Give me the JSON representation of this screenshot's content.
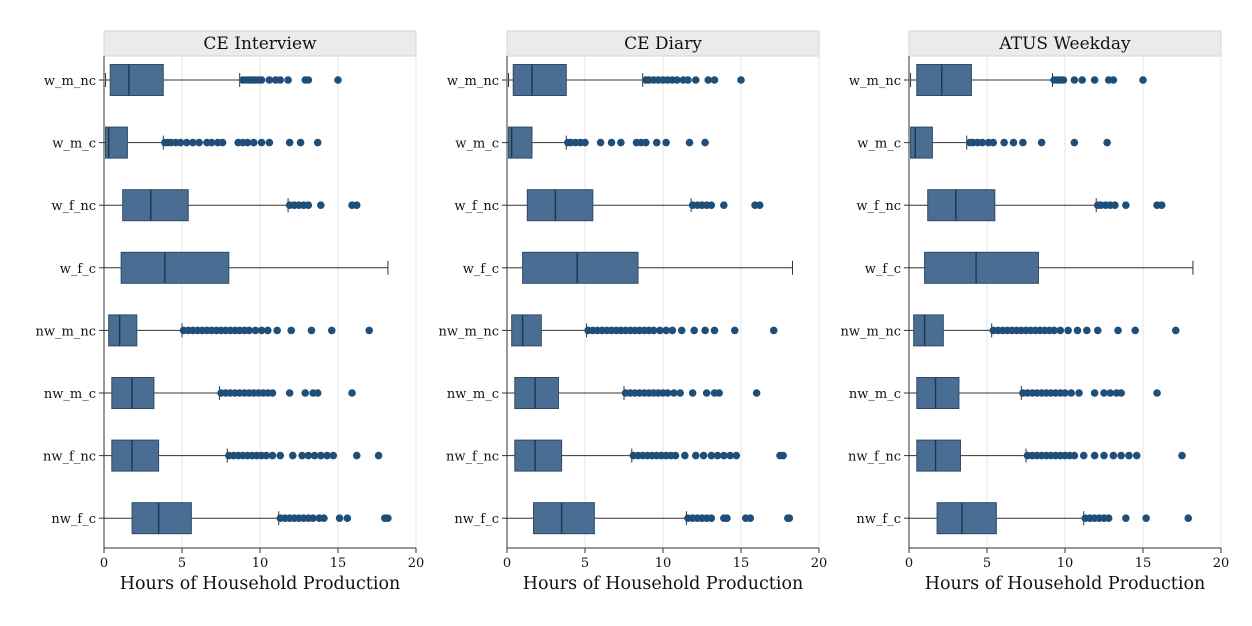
{
  "chart_data": {
    "type": "boxplot",
    "xlabel": "Hours of Household Production",
    "xlim": [
      0,
      20
    ],
    "xticks": [
      0,
      5,
      10,
      15,
      20
    ],
    "grid": true,
    "colors": {
      "box": "#4a6e93",
      "box_edge": "#2e4a66",
      "outlier": "#1f4e79",
      "title_bg": "#ebebeb",
      "grid": "#e6e6e6",
      "line": "#333333"
    },
    "categories": [
      "w_m_nc",
      "w_m_c",
      "w_f_nc",
      "w_f_c",
      "nw_m_nc",
      "nw_m_c",
      "nw_f_nc",
      "nw_f_c"
    ],
    "panels": [
      {
        "title": "CE Interview",
        "boxes": [
          {
            "min": 0.1,
            "q1": 0.4,
            "median": 1.6,
            "q3": 3.8,
            "max": 8.7,
            "outliers": [
              8.9,
              9.1,
              9.3,
              9.5,
              9.7,
              9.9,
              10.1,
              10.6,
              11.0,
              11.3,
              11.8,
              12.9,
              13.1,
              15.0
            ]
          },
          {
            "min": 0.0,
            "q1": 0.1,
            "median": 0.3,
            "q3": 1.5,
            "max": 3.8,
            "outliers": [
              3.9,
              4.1,
              4.3,
              4.6,
              4.9,
              5.3,
              5.7,
              6.1,
              6.6,
              6.9,
              7.3,
              7.6,
              8.6,
              8.9,
              9.2,
              9.6,
              10.1,
              10.6,
              11.9,
              12.6,
              13.7
            ]
          },
          {
            "min": 0.0,
            "q1": 1.2,
            "median": 3.0,
            "q3": 5.4,
            "max": 11.8,
            "outliers": [
              11.9,
              12.2,
              12.5,
              12.8,
              13.1,
              13.9,
              15.9,
              16.2
            ]
          },
          {
            "min": 0.0,
            "q1": 1.1,
            "median": 3.9,
            "q3": 8.0,
            "max": 18.2,
            "outliers": []
          },
          {
            "min": 0.0,
            "q1": 0.3,
            "median": 1.0,
            "q3": 2.1,
            "max": 5.0,
            "outliers": [
              5.1,
              5.4,
              5.7,
              6.0,
              6.3,
              6.6,
              6.9,
              7.2,
              7.5,
              7.8,
              8.1,
              8.4,
              8.7,
              9.0,
              9.3,
              9.7,
              10.1,
              10.5,
              11.1,
              12.0,
              13.3,
              14.6,
              17.0
            ]
          },
          {
            "min": 0.0,
            "q1": 0.5,
            "median": 1.8,
            "q3": 3.2,
            "max": 7.4,
            "outliers": [
              7.5,
              7.8,
              8.1,
              8.4,
              8.7,
              9.0,
              9.3,
              9.6,
              9.9,
              10.2,
              10.5,
              10.8,
              11.9,
              12.9,
              13.4,
              13.7,
              15.9
            ]
          },
          {
            "min": 0.0,
            "q1": 0.5,
            "median": 1.8,
            "q3": 3.5,
            "max": 7.9,
            "outliers": [
              8.0,
              8.3,
              8.6,
              8.9,
              9.2,
              9.5,
              9.8,
              10.1,
              10.4,
              10.8,
              11.3,
              12.1,
              12.7,
              13.1,
              13.5,
              13.9,
              14.3,
              14.7,
              16.2,
              17.6
            ]
          },
          {
            "min": 0.0,
            "q1": 1.8,
            "median": 3.5,
            "q3": 5.6,
            "max": 11.2,
            "outliers": [
              11.3,
              11.6,
              11.9,
              12.2,
              12.5,
              12.8,
              13.1,
              13.4,
              13.8,
              14.1,
              15.1,
              15.6,
              18.0,
              18.2
            ]
          }
        ]
      },
      {
        "title": "CE Diary",
        "boxes": [
          {
            "min": 0.1,
            "q1": 0.4,
            "median": 1.6,
            "q3": 3.8,
            "max": 8.7,
            "outliers": [
              8.9,
              9.1,
              9.4,
              9.7,
              10.0,
              10.3,
              10.6,
              10.9,
              11.3,
              11.6,
              12.1,
              12.9,
              13.3,
              15.0
            ]
          },
          {
            "min": 0.0,
            "q1": 0.1,
            "median": 0.3,
            "q3": 1.6,
            "max": 3.8,
            "outliers": [
              3.9,
              4.1,
              4.4,
              4.7,
              5.0,
              6.0,
              6.7,
              7.3,
              8.3,
              8.6,
              8.9,
              9.6,
              10.2,
              11.7,
              12.7
            ]
          },
          {
            "min": 0.0,
            "q1": 1.3,
            "median": 3.1,
            "q3": 5.5,
            "max": 11.8,
            "outliers": [
              11.9,
              12.2,
              12.5,
              12.8,
              13.1,
              13.9,
              15.9,
              16.2
            ]
          },
          {
            "min": 0.0,
            "q1": 1.0,
            "median": 4.5,
            "q3": 8.4,
            "max": 18.3,
            "outliers": []
          },
          {
            "min": 0.0,
            "q1": 0.3,
            "median": 1.0,
            "q3": 2.2,
            "max": 5.1,
            "outliers": [
              5.2,
              5.5,
              5.8,
              6.1,
              6.4,
              6.7,
              7.0,
              7.3,
              7.6,
              7.9,
              8.2,
              8.5,
              8.8,
              9.1,
              9.4,
              9.8,
              10.2,
              10.6,
              11.2,
              12.0,
              12.7,
              13.3,
              14.6,
              17.1
            ]
          },
          {
            "min": 0.0,
            "q1": 0.5,
            "median": 1.8,
            "q3": 3.3,
            "max": 7.5,
            "outliers": [
              7.6,
              7.9,
              8.2,
              8.5,
              8.8,
              9.1,
              9.4,
              9.7,
              10.0,
              10.3,
              10.7,
              11.1,
              11.9,
              12.8,
              13.3,
              13.6,
              16.0
            ]
          },
          {
            "min": 0.0,
            "q1": 0.5,
            "median": 1.8,
            "q3": 3.5,
            "max": 8.0,
            "outliers": [
              8.1,
              8.4,
              8.7,
              9.0,
              9.3,
              9.6,
              9.9,
              10.2,
              10.5,
              10.8,
              11.4,
              12.1,
              12.6,
              13.1,
              13.5,
              13.9,
              14.3,
              14.7,
              17.5,
              17.7
            ]
          },
          {
            "min": 0.0,
            "q1": 1.7,
            "median": 3.5,
            "q3": 5.6,
            "max": 11.5,
            "outliers": [
              11.6,
              11.9,
              12.2,
              12.5,
              12.8,
              13.1,
              13.9,
              14.1,
              15.3,
              15.6,
              18.0,
              18.1
            ]
          }
        ]
      },
      {
        "title": "ATUS Weekday",
        "boxes": [
          {
            "min": 0.1,
            "q1": 0.5,
            "median": 2.1,
            "q3": 4.0,
            "max": 9.2,
            "outliers": [
              9.3,
              9.5,
              9.7,
              9.9,
              10.6,
              11.1,
              11.9,
              12.8,
              13.1,
              15.0
            ]
          },
          {
            "min": 0.0,
            "q1": 0.1,
            "median": 0.4,
            "q3": 1.5,
            "max": 3.7,
            "outliers": [
              3.9,
              4.1,
              4.4,
              4.7,
              5.1,
              5.4,
              6.1,
              6.7,
              7.3,
              8.5,
              10.6,
              12.7
            ]
          },
          {
            "min": 0.0,
            "q1": 1.2,
            "median": 3.0,
            "q3": 5.5,
            "max": 12.0,
            "outliers": [
              12.1,
              12.3,
              12.6,
              12.9,
              13.2,
              13.9,
              15.9,
              16.2
            ]
          },
          {
            "min": 0.0,
            "q1": 1.0,
            "median": 4.3,
            "q3": 8.3,
            "max": 18.2,
            "outliers": []
          },
          {
            "min": 0.0,
            "q1": 0.3,
            "median": 1.0,
            "q3": 2.2,
            "max": 5.3,
            "outliers": [
              5.4,
              5.7,
              6.0,
              6.3,
              6.6,
              6.9,
              7.2,
              7.5,
              7.8,
              8.1,
              8.4,
              8.7,
              9.0,
              9.3,
              9.7,
              10.2,
              10.8,
              11.4,
              12.1,
              13.4,
              14.5,
              17.1
            ]
          },
          {
            "min": 0.0,
            "q1": 0.5,
            "median": 1.7,
            "q3": 3.2,
            "max": 7.2,
            "outliers": [
              7.3,
              7.6,
              7.9,
              8.2,
              8.5,
              8.8,
              9.1,
              9.4,
              9.7,
              10.0,
              10.4,
              10.9,
              11.9,
              12.5,
              12.9,
              13.3,
              13.6,
              15.9
            ]
          },
          {
            "min": 0.0,
            "q1": 0.5,
            "median": 1.7,
            "q3": 3.3,
            "max": 7.5,
            "outliers": [
              7.6,
              7.9,
              8.2,
              8.5,
              8.8,
              9.1,
              9.4,
              9.7,
              10.0,
              10.3,
              10.6,
              11.2,
              11.9,
              12.5,
              13.1,
              13.6,
              14.1,
              14.6,
              17.5
            ]
          },
          {
            "min": 0.0,
            "q1": 1.8,
            "median": 3.4,
            "q3": 5.6,
            "max": 11.2,
            "outliers": [
              11.3,
              11.6,
              11.9,
              12.2,
              12.5,
              12.8,
              13.9,
              15.2,
              17.9
            ]
          }
        ]
      }
    ]
  }
}
